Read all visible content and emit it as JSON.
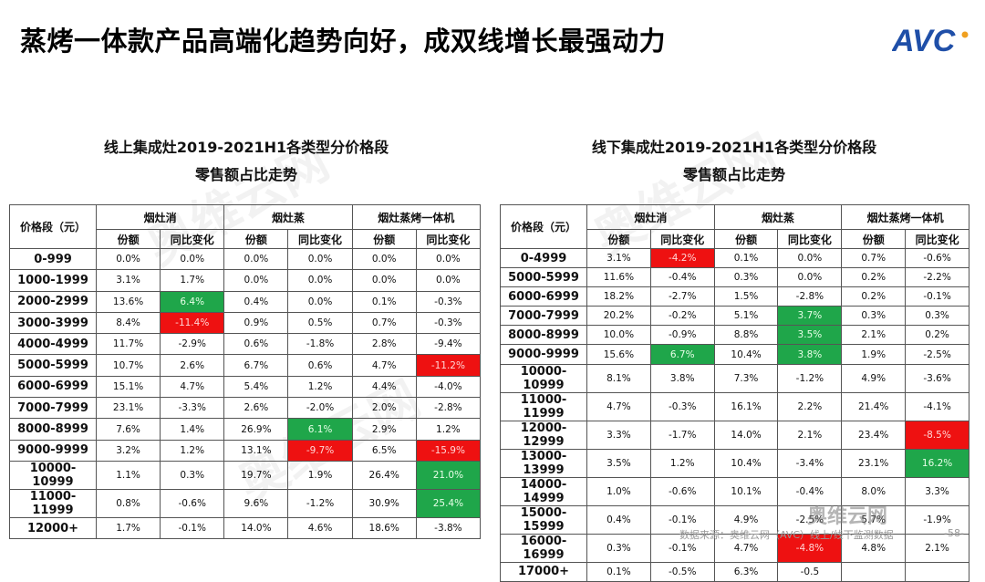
{
  "header": {
    "title": "蒸烤一体款产品高端化趋势向好，成双线增长最强动力",
    "logo_text": "AVC",
    "logo_color": "#1f4fa8",
    "logo_dot_color": "#f0a020"
  },
  "watermark": {
    "text": "奥维云网",
    "sub": "ALL VIEW CLOUD"
  },
  "colors": {
    "green": "#1fa64a",
    "red": "#ee1111"
  },
  "tables": [
    {
      "title_line1": "线上集成灶2019-2021H1各类型分价格段",
      "title_line2": "零售额占比走势",
      "corner": "价格段（元）",
      "groups": [
        "烟灶消",
        "烟灶蒸",
        "烟灶蒸烤一体机"
      ],
      "subheaders": [
        "份额",
        "同比变化",
        "份额",
        "同比变化",
        "份额",
        "同比变化"
      ],
      "rows": [
        {
          "label": "0-999",
          "cells": [
            "0.0%",
            "0.0%",
            "0.0%",
            "0.0%",
            "0.0%",
            "0.0%"
          ],
          "hl": {}
        },
        {
          "label": "1000-1999",
          "cells": [
            "3.1%",
            "1.7%",
            "0.0%",
            "0.0%",
            "0.0%",
            "0.0%"
          ],
          "hl": {}
        },
        {
          "label": "2000-2999",
          "cells": [
            "13.6%",
            "6.4%",
            "0.4%",
            "0.0%",
            "0.1%",
            "-0.3%"
          ],
          "hl": {
            "1": "green"
          }
        },
        {
          "label": "3000-3999",
          "cells": [
            "8.4%",
            "-11.4%",
            "0.9%",
            "0.5%",
            "0.7%",
            "-0.3%"
          ],
          "hl": {
            "1": "red"
          }
        },
        {
          "label": "4000-4999",
          "cells": [
            "11.7%",
            "-2.9%",
            "0.6%",
            "-1.8%",
            "2.8%",
            "-9.4%"
          ],
          "hl": {}
        },
        {
          "label": "5000-5999",
          "cells": [
            "10.7%",
            "2.6%",
            "6.7%",
            "0.6%",
            "4.7%",
            "-11.2%"
          ],
          "hl": {
            "5": "red"
          }
        },
        {
          "label": "6000-6999",
          "cells": [
            "15.1%",
            "4.7%",
            "5.4%",
            "1.2%",
            "4.4%",
            "-4.0%"
          ],
          "hl": {}
        },
        {
          "label": "7000-7999",
          "cells": [
            "23.1%",
            "-3.3%",
            "2.6%",
            "-2.0%",
            "2.0%",
            "-2.8%"
          ],
          "hl": {}
        },
        {
          "label": "8000-8999",
          "cells": [
            "7.6%",
            "1.4%",
            "26.9%",
            "6.1%",
            "2.9%",
            "1.2%"
          ],
          "hl": {
            "3": "green"
          }
        },
        {
          "label": "9000-9999",
          "cells": [
            "3.2%",
            "1.2%",
            "13.1%",
            "-9.7%",
            "6.5%",
            "-15.9%"
          ],
          "hl": {
            "3": "red",
            "5": "red"
          }
        },
        {
          "label": "10000-10999",
          "cells": [
            "1.1%",
            "0.3%",
            "19.7%",
            "1.9%",
            "26.4%",
            "21.0%"
          ],
          "hl": {
            "5": "green"
          }
        },
        {
          "label": "11000-11999",
          "cells": [
            "0.8%",
            "-0.6%",
            "9.6%",
            "-1.2%",
            "30.9%",
            "25.4%"
          ],
          "hl": {
            "5": "green"
          }
        },
        {
          "label": "12000+",
          "cells": [
            "1.7%",
            "-0.1%",
            "14.0%",
            "4.6%",
            "18.6%",
            "-3.8%"
          ],
          "hl": {}
        }
      ]
    },
    {
      "title_line1": "线下集成灶2019-2021H1各类型分价格段",
      "title_line2": "零售额占比走势",
      "corner": "价格段（元）",
      "groups": [
        "烟灶消",
        "烟灶蒸",
        "烟灶蒸烤一体机"
      ],
      "subheaders": [
        "份额",
        "同比变化",
        "份额",
        "同比变化",
        "份额",
        "同比变化"
      ],
      "rows": [
        {
          "label": "0-4999",
          "cells": [
            "3.1%",
            "-4.2%",
            "0.1%",
            "0.0%",
            "0.7%",
            "-0.6%"
          ],
          "hl": {
            "1": "red"
          }
        },
        {
          "label": "5000-5999",
          "cells": [
            "11.6%",
            "-0.4%",
            "0.3%",
            "0.0%",
            "0.2%",
            "-2.2%"
          ],
          "hl": {}
        },
        {
          "label": "6000-6999",
          "cells": [
            "18.2%",
            "-2.7%",
            "1.5%",
            "-2.8%",
            "0.2%",
            "-0.1%"
          ],
          "hl": {}
        },
        {
          "label": "7000-7999",
          "cells": [
            "20.2%",
            "-0.2%",
            "5.1%",
            "3.7%",
            "0.3%",
            "0.3%"
          ],
          "hl": {
            "3": "green"
          }
        },
        {
          "label": "8000-8999",
          "cells": [
            "10.0%",
            "-0.9%",
            "8.8%",
            "3.5%",
            "2.1%",
            "0.2%"
          ],
          "hl": {
            "3": "green"
          }
        },
        {
          "label": "9000-9999",
          "cells": [
            "15.6%",
            "6.7%",
            "10.4%",
            "3.8%",
            "1.9%",
            "-2.5%"
          ],
          "hl": {
            "1": "green",
            "3": "green"
          }
        },
        {
          "label": "10000-10999",
          "cells": [
            "8.1%",
            "3.8%",
            "7.3%",
            "-1.2%",
            "4.9%",
            "-3.6%"
          ],
          "hl": {}
        },
        {
          "label": "11000-11999",
          "cells": [
            "4.7%",
            "-0.3%",
            "16.1%",
            "2.2%",
            "21.4%",
            "-4.1%"
          ],
          "hl": {}
        },
        {
          "label": "12000-12999",
          "cells": [
            "3.3%",
            "-1.7%",
            "14.0%",
            "2.1%",
            "23.4%",
            "-8.5%"
          ],
          "hl": {
            "5": "red"
          }
        },
        {
          "label": "13000-13999",
          "cells": [
            "3.5%",
            "1.2%",
            "10.4%",
            "-3.4%",
            "23.1%",
            "16.2%"
          ],
          "hl": {
            "5": "green"
          }
        },
        {
          "label": "14000-14999",
          "cells": [
            "1.0%",
            "-0.6%",
            "10.1%",
            "-0.4%",
            "8.0%",
            "3.3%"
          ],
          "hl": {}
        },
        {
          "label": "15000-15999",
          "cells": [
            "0.4%",
            "-0.1%",
            "4.9%",
            "-2.5%",
            "5.7%",
            "-1.9%"
          ],
          "hl": {}
        },
        {
          "label": "16000-16999",
          "cells": [
            "0.3%",
            "-0.1%",
            "4.7%",
            "-4.8%",
            "4.8%",
            "2.1%"
          ],
          "hl": {
            "3": "red"
          }
        },
        {
          "label": "17000+",
          "cells": [
            "0.1%",
            "-0.5%",
            "6.3%",
            "-0.5",
            "",
            ""
          ],
          "hl": {}
        }
      ]
    }
  ],
  "footer": {
    "source": "数据来源：奥维云网（AVC）线上/线下监测数据",
    "page": "-58-",
    "wechat_overlay": "奥维云网"
  }
}
